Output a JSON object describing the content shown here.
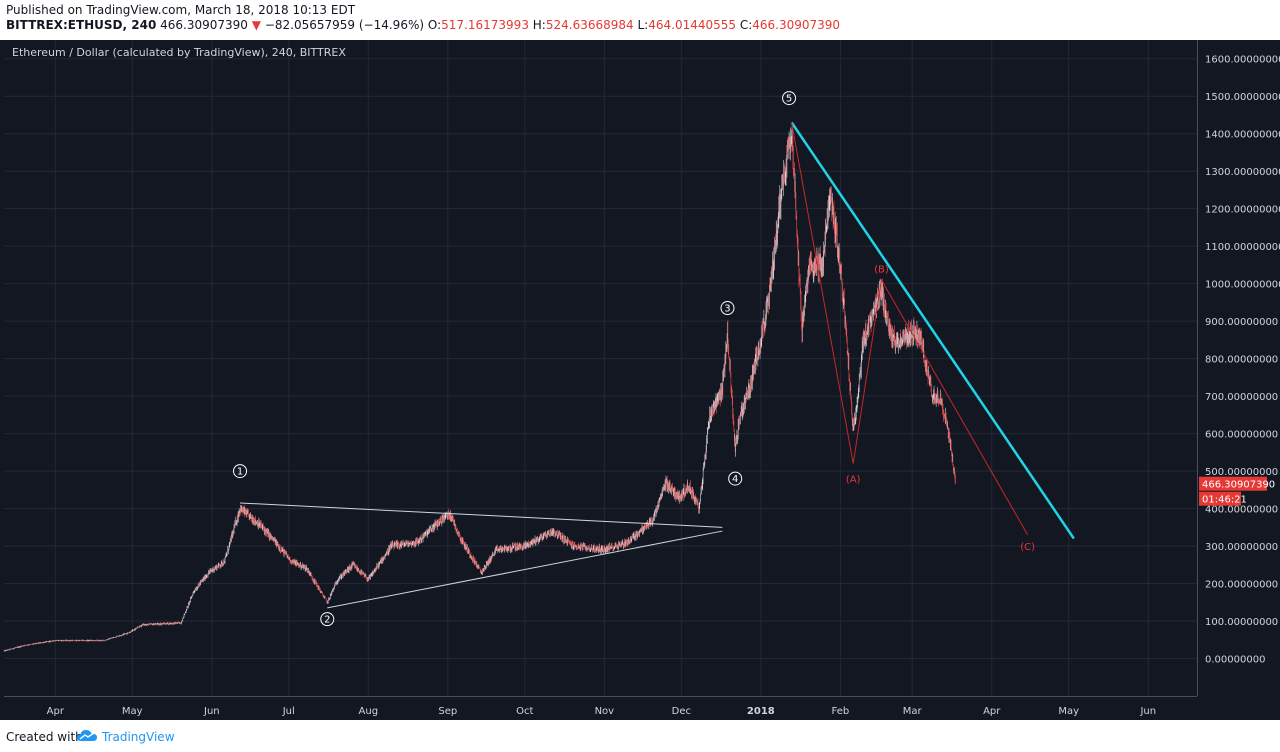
{
  "header": {
    "published": "Published on TradingView.com, March 18, 2018 10:13 EDT",
    "symbol": "BITTREX:ETHUSD, 240",
    "last": "466.30907390",
    "change_arrow": "▼",
    "change": "−82.05657959 (−14.96%)",
    "o_label": "O:",
    "o_value": "517.16173993",
    "h_label": "H:",
    "h_value": "524.63668984",
    "l_label": "L:",
    "l_value": "464.01440555",
    "c_label": "C:",
    "c_value": "466.30907390"
  },
  "footer": {
    "created_with": "Created with",
    "brand": "TradingView",
    "brand_icon": "tradingview-cloud-icon"
  },
  "colors": {
    "background": "#131722",
    "grid": "#242836",
    "up_candle": "#d1d4dc",
    "down_candle": "#ef5350",
    "trendline_cyan": "#1ed4e6",
    "wave_red": "#c62828",
    "triangle_white": "#d1d4dc",
    "price_tag": "#e53935"
  },
  "chart_data": {
    "type": "candlestick",
    "title": "Ethereum / Dollar (calculated by TradingView), 240, BITTREX",
    "xlabel": "",
    "ylabel": "",
    "ylim": [
      -100,
      1650
    ],
    "xlim": [
      "2017-03-12",
      "2018-06-20"
    ],
    "y_ticks": [
      "1600.00000000",
      "1500.00000000",
      "1400.00000000",
      "1300.00000000",
      "1200.00000000",
      "1100.00000000",
      "1000.00000000",
      "900.00000000",
      "800.00000000",
      "700.00000000",
      "600.00000000",
      "500.00000000",
      "400.00000000",
      "300.00000000",
      "200.00000000",
      "100.00000000",
      "0.00000000"
    ],
    "y_tick_values": [
      1600,
      1500,
      1400,
      1300,
      1200,
      1100,
      1000,
      900,
      800,
      700,
      600,
      500,
      400,
      300,
      200,
      100,
      0
    ],
    "x_ticks": [
      {
        "label": "Apr",
        "date": "2017-04-01"
      },
      {
        "label": "May",
        "date": "2017-05-01"
      },
      {
        "label": "Jun",
        "date": "2017-06-01"
      },
      {
        "label": "Jul",
        "date": "2017-07-01"
      },
      {
        "label": "Aug",
        "date": "2017-08-01"
      },
      {
        "label": "Sep",
        "date": "2017-09-01"
      },
      {
        "label": "Oct",
        "date": "2017-10-01"
      },
      {
        "label": "Nov",
        "date": "2017-11-01"
      },
      {
        "label": "Dec",
        "date": "2017-12-01"
      },
      {
        "label": "2018",
        "date": "2018-01-01"
      },
      {
        "label": "Feb",
        "date": "2018-02-01"
      },
      {
        "label": "Mar",
        "date": "2018-03-01"
      },
      {
        "label": "Apr",
        "date": "2018-04-01"
      },
      {
        "label": "May",
        "date": "2018-05-01"
      },
      {
        "label": "Jun",
        "date": "2018-06-01"
      }
    ],
    "grid": true,
    "series": [
      {
        "price_path": [
          {
            "x": "2017-03-12",
            "y": 20
          },
          {
            "x": "2017-03-20",
            "y": 35
          },
          {
            "x": "2017-04-01",
            "y": 48
          },
          {
            "x": "2017-04-20",
            "y": 48
          },
          {
            "x": "2017-04-30",
            "y": 70
          },
          {
            "x": "2017-05-05",
            "y": 90
          },
          {
            "x": "2017-05-20",
            "y": 95
          },
          {
            "x": "2017-05-25",
            "y": 180
          },
          {
            "x": "2017-05-31",
            "y": 230
          },
          {
            "x": "2017-06-06",
            "y": 260
          },
          {
            "x": "2017-06-12",
            "y": 400
          },
          {
            "x": "2017-06-20",
            "y": 355
          },
          {
            "x": "2017-06-27",
            "y": 300
          },
          {
            "x": "2017-07-02",
            "y": 260
          },
          {
            "x": "2017-07-08",
            "y": 240
          },
          {
            "x": "2017-07-16",
            "y": 150
          },
          {
            "x": "2017-07-20",
            "y": 210
          },
          {
            "x": "2017-07-26",
            "y": 250
          },
          {
            "x": "2017-08-01",
            "y": 210
          },
          {
            "x": "2017-08-10",
            "y": 300
          },
          {
            "x": "2017-08-20",
            "y": 310
          },
          {
            "x": "2017-08-31",
            "y": 380
          },
          {
            "x": "2017-09-02",
            "y": 385
          },
          {
            "x": "2017-09-06",
            "y": 320
          },
          {
            "x": "2017-09-14",
            "y": 230
          },
          {
            "x": "2017-09-20",
            "y": 290
          },
          {
            "x": "2017-10-01",
            "y": 300
          },
          {
            "x": "2017-10-12",
            "y": 340
          },
          {
            "x": "2017-10-20",
            "y": 300
          },
          {
            "x": "2017-11-01",
            "y": 290
          },
          {
            "x": "2017-11-10",
            "y": 310
          },
          {
            "x": "2017-11-20",
            "y": 370
          },
          {
            "x": "2017-11-25",
            "y": 470
          },
          {
            "x": "2017-11-30",
            "y": 430
          },
          {
            "x": "2017-12-04",
            "y": 460
          },
          {
            "x": "2017-12-08",
            "y": 400
          },
          {
            "x": "2017-12-12",
            "y": 650
          },
          {
            "x": "2017-12-17",
            "y": 720
          },
          {
            "x": "2017-12-19",
            "y": 870
          },
          {
            "x": "2017-12-22",
            "y": 560
          },
          {
            "x": "2017-12-24",
            "y": 650
          },
          {
            "x": "2017-12-28",
            "y": 730
          },
          {
            "x": "2018-01-04",
            "y": 950
          },
          {
            "x": "2018-01-09",
            "y": 1250
          },
          {
            "x": "2018-01-13",
            "y": 1420
          },
          {
            "x": "2018-01-17",
            "y": 880
          },
          {
            "x": "2018-01-20",
            "y": 1050
          },
          {
            "x": "2018-01-25",
            "y": 1050
          },
          {
            "x": "2018-01-28",
            "y": 1240
          },
          {
            "x": "2018-01-31",
            "y": 1100
          },
          {
            "x": "2018-02-03",
            "y": 900
          },
          {
            "x": "2018-02-06",
            "y": 600
          },
          {
            "x": "2018-02-10",
            "y": 850
          },
          {
            "x": "2018-02-14",
            "y": 920
          },
          {
            "x": "2018-02-17",
            "y": 980
          },
          {
            "x": "2018-02-21",
            "y": 850
          },
          {
            "x": "2018-02-25",
            "y": 850
          },
          {
            "x": "2018-03-01",
            "y": 870
          },
          {
            "x": "2018-03-04",
            "y": 860
          },
          {
            "x": "2018-03-07",
            "y": 760
          },
          {
            "x": "2018-03-09",
            "y": 700
          },
          {
            "x": "2018-03-12",
            "y": 700
          },
          {
            "x": "2018-03-15",
            "y": 610
          },
          {
            "x": "2018-03-18",
            "y": 466
          }
        ]
      }
    ],
    "last_price_tag": "466.30907390",
    "countdown_tag": "01:46:21",
    "wave_labels": [
      {
        "label": "1",
        "x": "2017-06-12",
        "y": 500,
        "style": "circled",
        "color": "white"
      },
      {
        "label": "2",
        "x": "2017-07-16",
        "y": 105,
        "style": "circled",
        "color": "white"
      },
      {
        "label": "3",
        "x": "2017-12-19",
        "y": 935,
        "style": "circled",
        "color": "white"
      },
      {
        "label": "4",
        "x": "2017-12-22",
        "y": 480,
        "style": "circled",
        "color": "white"
      },
      {
        "label": "5",
        "x": "2018-01-12",
        "y": 1495,
        "style": "circled",
        "color": "white"
      },
      {
        "label": "(A)",
        "x": "2018-02-06",
        "y": 480,
        "style": "plain",
        "color": "red"
      },
      {
        "label": "(B)",
        "x": "2018-02-17",
        "y": 1040,
        "style": "plain",
        "color": "red"
      },
      {
        "label": "(C)",
        "x": "2018-04-15",
        "y": 300,
        "style": "plain",
        "color": "red"
      }
    ],
    "trendlines": [
      {
        "name": "triangle-upper",
        "color": "white",
        "points": [
          {
            "x": "2017-06-12",
            "y": 415
          },
          {
            "x": "2017-12-17",
            "y": 350
          }
        ]
      },
      {
        "name": "triangle-lower",
        "color": "white",
        "points": [
          {
            "x": "2017-07-16",
            "y": 135
          },
          {
            "x": "2017-12-17",
            "y": 340
          }
        ]
      },
      {
        "name": "resistance-line",
        "color": "cyan",
        "points": [
          {
            "x": "2018-01-13",
            "y": 1430
          },
          {
            "x": "2018-05-03",
            "y": 320
          }
        ]
      },
      {
        "name": "correction-path",
        "color": "red",
        "points": [
          {
            "x": "2018-01-13",
            "y": 1430
          },
          {
            "x": "2018-02-06",
            "y": 520
          },
          {
            "x": "2018-02-17",
            "y": 1010
          },
          {
            "x": "2018-04-15",
            "y": 330
          }
        ]
      }
    ]
  }
}
